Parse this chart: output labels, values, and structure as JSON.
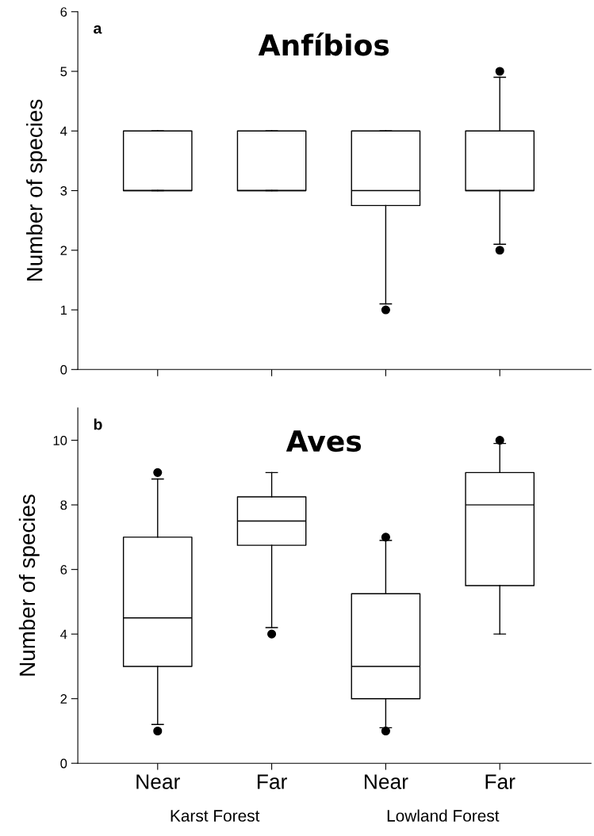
{
  "chart_data": [
    {
      "type": "box",
      "title": "Anfíbios",
      "ylabel": "Number of species",
      "categories": [
        null,
        null,
        null,
        null
      ],
      "ylim": [
        0,
        6
      ],
      "yticks": [
        0,
        1,
        2,
        3,
        4,
        5,
        6
      ],
      "tick_labels": "y",
      "grid": false,
      "annotations": [
        "a"
      ],
      "boxes": [
        {
          "low": 3,
          "q1": 3,
          "median": 3,
          "q3": 4,
          "high": 4
        },
        {
          "low": 3,
          "q1": 3,
          "median": 3,
          "q3": 4,
          "high": 4
        },
        {
          "low": 1.1,
          "q1": 2.75,
          "median": 3,
          "q3": 4,
          "high": 4,
          "outliers": [
            1
          ]
        },
        {
          "low": 2.1,
          "q1": 3,
          "median": 3,
          "q3": 4,
          "high": 4.9,
          "outliers": [
            2,
            5
          ]
        }
      ]
    },
    {
      "type": "box",
      "title": "Aves",
      "ylabel": "Number of species",
      "categories": [
        "Near",
        "Far",
        "Near",
        "Far"
      ],
      "ylim": [
        0,
        11
      ],
      "yticks": [
        0,
        2,
        4,
        6,
        8,
        10
      ],
      "grid": false,
      "annotations": [
        "b",
        "Karst Forest",
        "Lowland Forest"
      ],
      "boxes": [
        {
          "low": 1.2,
          "q1": 3,
          "median": 4.5,
          "q3": 7,
          "high": 8.8,
          "outliers": [
            1,
            9
          ]
        },
        {
          "low": 4.2,
          "q1": 6.75,
          "median": 7.5,
          "q3": 8.25,
          "high": 9,
          "outliers": [
            4
          ]
        },
        {
          "low": 1.1,
          "q1": 2,
          "median": 3,
          "q3": 5.25,
          "high": 6.9,
          "outliers": [
            1,
            7
          ]
        },
        {
          "low": 4,
          "q1": 5.5,
          "median": 8,
          "q3": 9,
          "high": 9.9,
          "outliers": [
            10
          ]
        }
      ]
    }
  ]
}
